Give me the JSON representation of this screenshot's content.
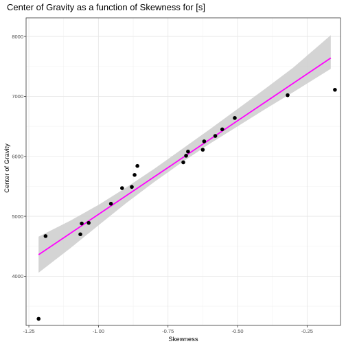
{
  "chart_data": {
    "type": "scatter",
    "title": "Center of Gravity as a function of Skewness for [s]",
    "xlabel": "Skewness",
    "ylabel": "Center of Gravity",
    "xlim": [
      -1.26,
      -0.13
    ],
    "ylim": [
      3180,
      8310
    ],
    "x_ticks": [
      -1.25,
      -1.0,
      -0.75,
      -0.5,
      -0.25
    ],
    "x_tick_labels": [
      "-1.25",
      "-1.00",
      "-0.75",
      "-0.50",
      "-0.25"
    ],
    "y_ticks": [
      4000,
      5000,
      6000,
      7000,
      8000
    ],
    "y_tick_labels": [
      "4000",
      "5000",
      "6000",
      "7000",
      "8000"
    ],
    "grid": true,
    "points": [
      {
        "x": -1.215,
        "y": 3290
      },
      {
        "x": -1.19,
        "y": 4670
      },
      {
        "x": -1.065,
        "y": 4700
      },
      {
        "x": -1.06,
        "y": 4880
      },
      {
        "x": -1.035,
        "y": 4890
      },
      {
        "x": -0.955,
        "y": 5210
      },
      {
        "x": -0.915,
        "y": 5470
      },
      {
        "x": -0.88,
        "y": 5490
      },
      {
        "x": -0.87,
        "y": 5690
      },
      {
        "x": -0.86,
        "y": 5840
      },
      {
        "x": -0.695,
        "y": 5900
      },
      {
        "x": -0.685,
        "y": 6010
      },
      {
        "x": -0.678,
        "y": 6080
      },
      {
        "x": -0.625,
        "y": 6110
      },
      {
        "x": -0.62,
        "y": 6250
      },
      {
        "x": -0.58,
        "y": 6340
      },
      {
        "x": -0.555,
        "y": 6450
      },
      {
        "x": -0.51,
        "y": 6640
      },
      {
        "x": -0.32,
        "y": 7020
      },
      {
        "x": -0.15,
        "y": 7110
      }
    ],
    "fit_line": {
      "x": [
        -1.215,
        -0.165
      ],
      "y": [
        4360,
        7640
      ],
      "color": "#ff00ff"
    },
    "confidence_band": {
      "x": [
        -1.215,
        -1.1,
        -1.0,
        -0.9,
        -0.8,
        -0.7,
        -0.6,
        -0.5,
        -0.4,
        -0.3,
        -0.165
      ],
      "lower": [
        4060,
        4470,
        4850,
        5220,
        5570,
        5900,
        6210,
        6500,
        6790,
        7070,
        7460
      ],
      "upper": [
        4660,
        4930,
        5190,
        5480,
        5790,
        6120,
        6450,
        6790,
        7130,
        7480,
        8020
      ],
      "color": "#cccccc"
    },
    "point_color": "#000000"
  }
}
